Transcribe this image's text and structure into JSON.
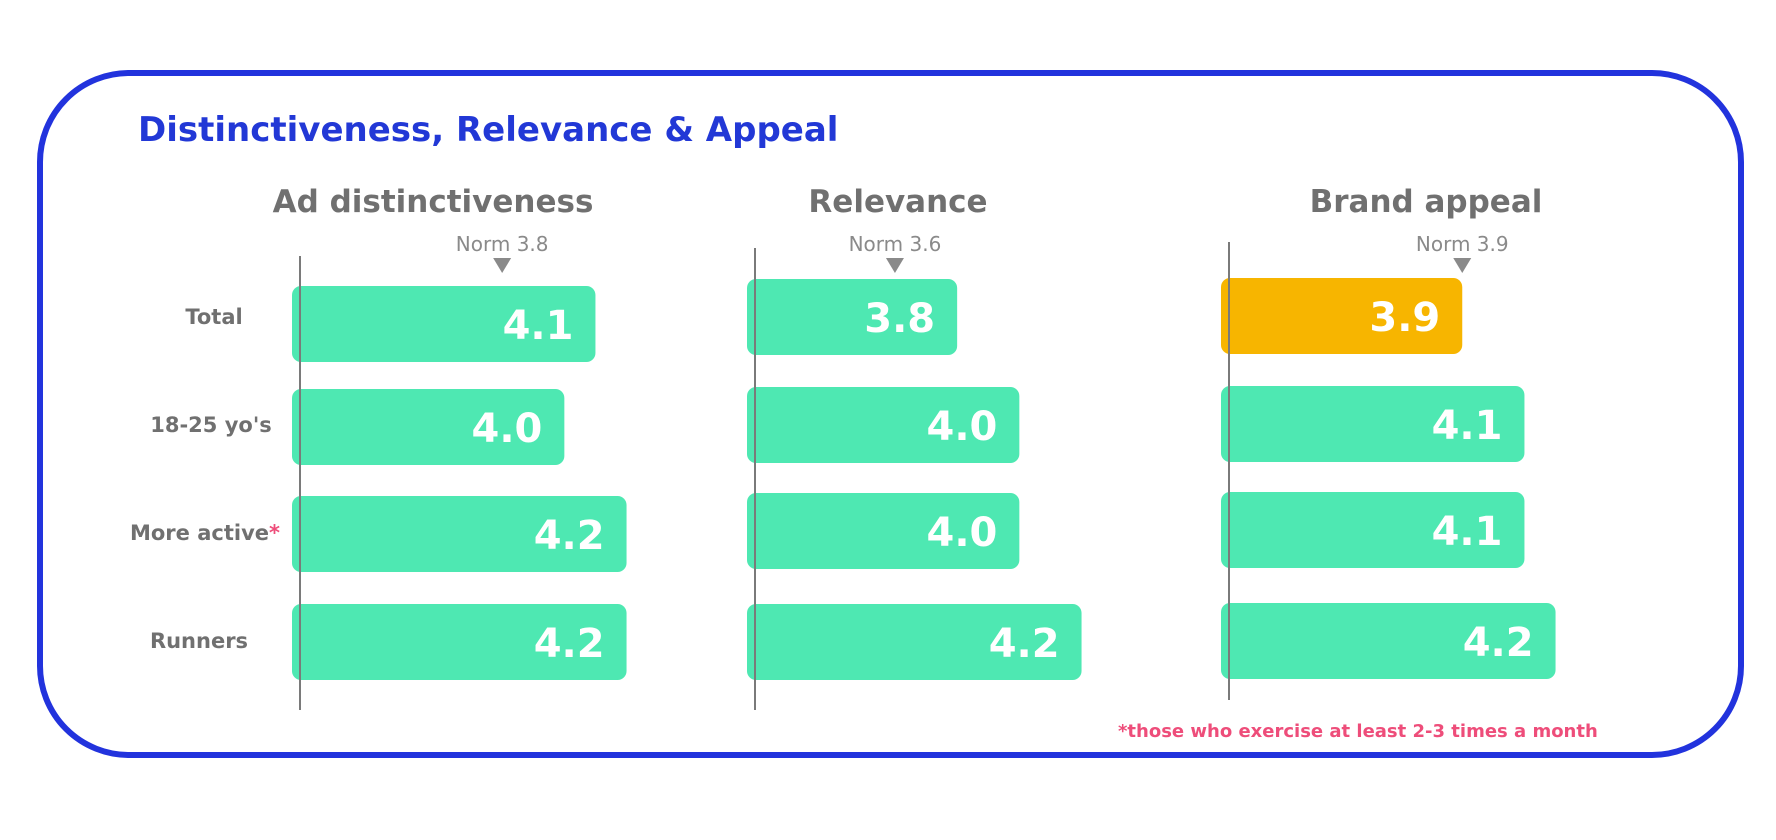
{
  "title": "Distinctiveness, Relevance & Appeal",
  "footnote": "*those who exercise at least 2-3 times a month",
  "colors": {
    "frame": "#2233dd",
    "title": "#2238d6",
    "bar": "#4ee8b2",
    "highlight": "#f7b500",
    "axis": "#7a7a7a",
    "label": "#707070",
    "footnote": "#ee4d7a"
  },
  "rows": [
    {
      "label": "Total",
      "star": ""
    },
    {
      "label": "18-25 yo's",
      "star": ""
    },
    {
      "label": "More active",
      "star": "*"
    },
    {
      "label": "Runners",
      "star": ""
    }
  ],
  "chart_data": [
    {
      "type": "bar",
      "orientation": "horizontal",
      "title": "Ad distinctiveness",
      "categories": [
        "Total",
        "18-25 yo's",
        "More active",
        "Runners"
      ],
      "values": [
        4.1,
        4.0,
        4.2,
        4.2
      ],
      "value_labels": [
        "4.1",
        "4.0",
        "4.2",
        "4.2"
      ],
      "norm": {
        "label": "Norm 3.8",
        "value": 3.8
      },
      "highlight": []
    },
    {
      "type": "bar",
      "orientation": "horizontal",
      "title": "Relevance",
      "categories": [
        "Total",
        "18-25 yo's",
        "More active",
        "Runners"
      ],
      "values": [
        3.8,
        4.0,
        4.0,
        4.2
      ],
      "value_labels": [
        "3.8",
        "4.0",
        "4.0",
        "4.2"
      ],
      "norm": {
        "label": "Norm 3.6",
        "value": 3.6
      },
      "highlight": []
    },
    {
      "type": "bar",
      "orientation": "horizontal",
      "title": "Brand appeal",
      "categories": [
        "Total",
        "18-25 yo's",
        "More active",
        "Runners"
      ],
      "values": [
        3.9,
        4.1,
        4.1,
        4.2
      ],
      "value_labels": [
        "3.9",
        "4.1",
        "4.1",
        "4.2"
      ],
      "norm": {
        "label": "Norm 3.9",
        "value": 3.9
      },
      "highlight": [
        0
      ]
    }
  ]
}
